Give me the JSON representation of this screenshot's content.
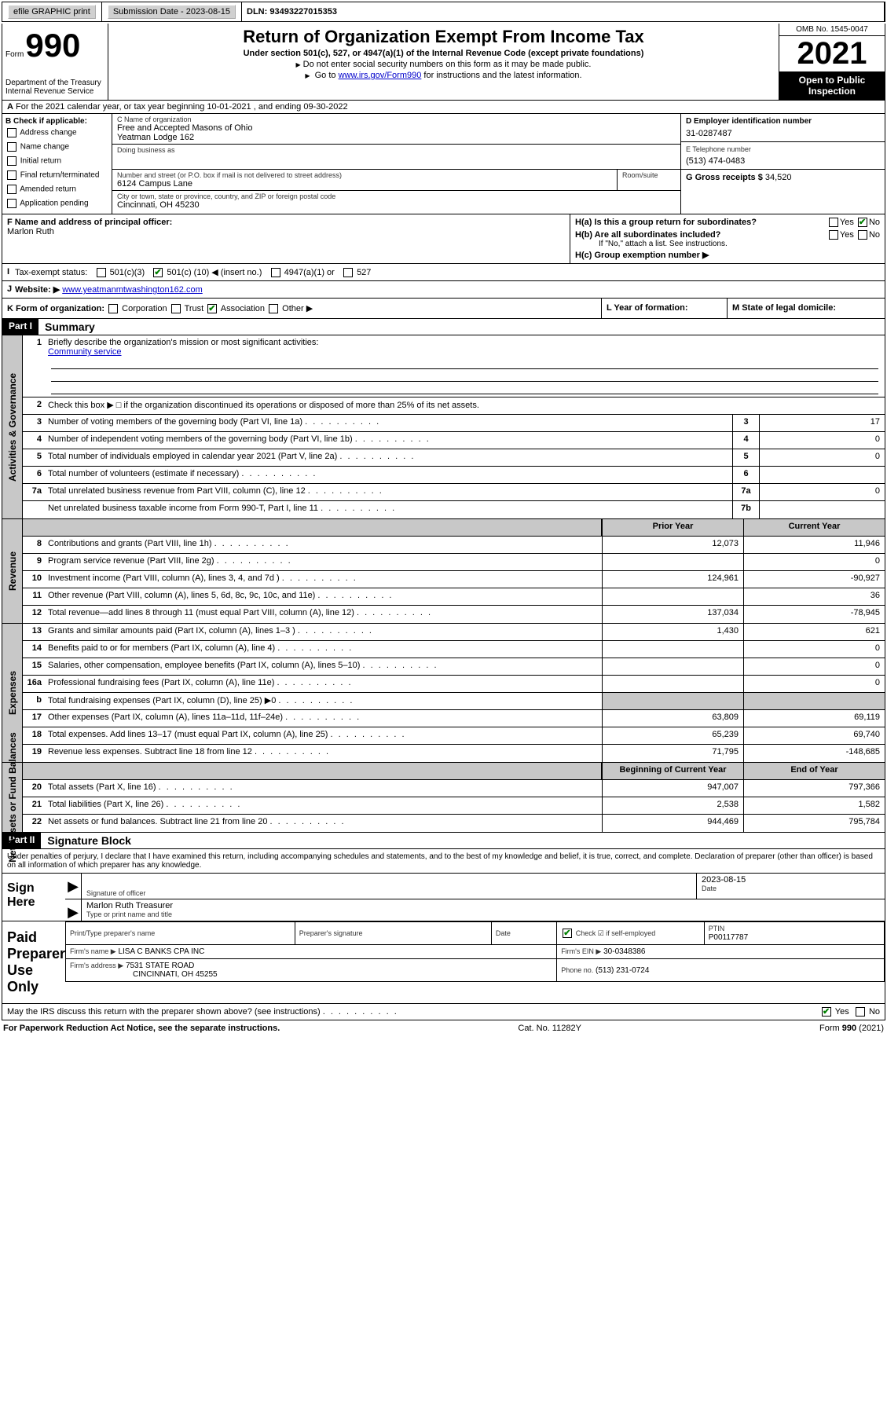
{
  "topbar": {
    "efile_label": "efile GRAPHIC print",
    "submission_label": "Submission Date - 2023-08-15",
    "dln_label": "DLN: 93493227015353"
  },
  "header": {
    "form_word": "Form",
    "form_number": "990",
    "dept": "Department of the Treasury",
    "irs": "Internal Revenue Service",
    "title": "Return of Organization Exempt From Income Tax",
    "sub1": "Under section 501(c), 527, or 4947(a)(1) of the Internal Revenue Code (except private foundations)",
    "sub2": "Do not enter social security numbers on this form as it may be made public.",
    "sub3_pre": "Go to ",
    "sub3_link": "www.irs.gov/Form990",
    "sub3_post": " for instructions and the latest information.",
    "omb": "OMB No. 1545-0047",
    "year": "2021",
    "open_public": "Open to Public Inspection"
  },
  "row_a": {
    "label_a": "A",
    "text": "For the 2021 calendar year, or tax year beginning 10-01-2021    , and ending 09-30-2022"
  },
  "b": {
    "heading": "B Check if applicable:",
    "opts": [
      "Address change",
      "Name change",
      "Initial return",
      "Final return/terminated",
      "Amended return",
      "Application pending"
    ]
  },
  "c": {
    "name_label": "C Name of organization",
    "name_1": "Free and Accepted Masons of Ohio",
    "name_2": "Yeatman Lodge 162",
    "dba_label": "Doing business as",
    "street_label": "Number and street (or P.O. box if mail is not delivered to street address)",
    "street": "6124 Campus Lane",
    "room_label": "Room/suite",
    "city_label": "City or town, state or province, country, and ZIP or foreign postal code",
    "city": "Cincinnati, OH  45230"
  },
  "d": {
    "label": "D Employer identification number",
    "value": "31-0287487"
  },
  "e": {
    "label": "E Telephone number",
    "value": "(513) 474-0483"
  },
  "g": {
    "label": "G Gross receipts $",
    "value": "34,520"
  },
  "f": {
    "label": "F  Name and address of principal officer:",
    "name": "Marlon Ruth"
  },
  "h": {
    "a_label": "H(a)  Is this a group return for subordinates?",
    "yes": "Yes",
    "no": "No",
    "b_label": "H(b)  Are all subordinates included?",
    "b_note": "If \"No,\" attach a list. See instructions.",
    "c_label": "H(c)  Group exemption number ▶"
  },
  "i": {
    "label": "Tax-exempt status:",
    "opt1": "501(c)(3)",
    "opt2_pre": "501(c) (",
    "opt2_num": "10",
    "opt2_post": ") ◀ (insert no.)",
    "opt3": "4947(a)(1) or",
    "opt4": "527"
  },
  "j": {
    "label": "Website: ▶",
    "value": "www.yeatmanmtwashington162.com"
  },
  "k": {
    "label": "K Form of organization:",
    "opts": [
      "Corporation",
      "Trust",
      "Association",
      "Other ▶"
    ],
    "checked_idx": 2
  },
  "l": {
    "label": "L Year of formation:"
  },
  "m": {
    "label": "M State of legal domicile:"
  },
  "parts": {
    "p1": "Part I",
    "p1_title": "Summary",
    "p2": "Part II",
    "p2_title": "Signature Block"
  },
  "summary": {
    "l1_label": "Briefly describe the organization's mission or most significant activities:",
    "l1_value": "Community service",
    "l2": "Check this box ▶ □  if the organization discontinued its operations or disposed of more than 25% of its net assets.",
    "rows_gov": [
      {
        "n": "3",
        "d": "Number of voting members of the governing body (Part VI, line 1a)",
        "box": "3",
        "v": "17"
      },
      {
        "n": "4",
        "d": "Number of independent voting members of the governing body (Part VI, line 1b)",
        "box": "4",
        "v": "0"
      },
      {
        "n": "5",
        "d": "Total number of individuals employed in calendar year 2021 (Part V, line 2a)",
        "box": "5",
        "v": "0"
      },
      {
        "n": "6",
        "d": "Total number of volunteers (estimate if necessary)",
        "box": "6",
        "v": ""
      },
      {
        "n": "7a",
        "d": "Total unrelated business revenue from Part VIII, column (C), line 12",
        "box": "7a",
        "v": "0"
      },
      {
        "n": "",
        "d": "Net unrelated business taxable income from Form 990-T, Part I, line 11",
        "box": "7b",
        "v": ""
      }
    ],
    "col_prior": "Prior Year",
    "col_curr": "Current Year",
    "rows_rev": [
      {
        "n": "8",
        "d": "Contributions and grants (Part VIII, line 1h)",
        "p": "12,073",
        "c": "11,946"
      },
      {
        "n": "9",
        "d": "Program service revenue (Part VIII, line 2g)",
        "p": "",
        "c": "0"
      },
      {
        "n": "10",
        "d": "Investment income (Part VIII, column (A), lines 3, 4, and 7d )",
        "p": "124,961",
        "c": "-90,927"
      },
      {
        "n": "11",
        "d": "Other revenue (Part VIII, column (A), lines 5, 6d, 8c, 9c, 10c, and 11e)",
        "p": "",
        "c": "36"
      },
      {
        "n": "12",
        "d": "Total revenue—add lines 8 through 11 (must equal Part VIII, column (A), line 12)",
        "p": "137,034",
        "c": "-78,945"
      }
    ],
    "rows_exp": [
      {
        "n": "13",
        "d": "Grants and similar amounts paid (Part IX, column (A), lines 1–3 )",
        "p": "1,430",
        "c": "621"
      },
      {
        "n": "14",
        "d": "Benefits paid to or for members (Part IX, column (A), line 4)",
        "p": "",
        "c": "0"
      },
      {
        "n": "15",
        "d": "Salaries, other compensation, employee benefits (Part IX, column (A), lines 5–10)",
        "p": "",
        "c": "0"
      },
      {
        "n": "16a",
        "d": "Professional fundraising fees (Part IX, column (A), line 11e)",
        "p": "",
        "c": "0"
      },
      {
        "n": "b",
        "d": "Total fundraising expenses (Part IX, column (D), line 25) ▶0",
        "p": "SHADE",
        "c": "SHADE"
      },
      {
        "n": "17",
        "d": "Other expenses (Part IX, column (A), lines 11a–11d, 11f–24e)",
        "p": "63,809",
        "c": "69,119"
      },
      {
        "n": "18",
        "d": "Total expenses. Add lines 13–17 (must equal Part IX, column (A), line 25)",
        "p": "65,239",
        "c": "69,740"
      },
      {
        "n": "19",
        "d": "Revenue less expenses. Subtract line 18 from line 12",
        "p": "71,795",
        "c": "-148,685"
      }
    ],
    "col_beg": "Beginning of Current Year",
    "col_end": "End of Year",
    "rows_net": [
      {
        "n": "20",
        "d": "Total assets (Part X, line 16)",
        "p": "947,007",
        "c": "797,366"
      },
      {
        "n": "21",
        "d": "Total liabilities (Part X, line 26)",
        "p": "2,538",
        "c": "1,582"
      },
      {
        "n": "22",
        "d": "Net assets or fund balances. Subtract line 21 from line 20",
        "p": "944,469",
        "c": "795,784"
      }
    ],
    "side_gov": "Activities & Governance",
    "side_rev": "Revenue",
    "side_exp": "Expenses",
    "side_net": "Net Assets or Fund Balances"
  },
  "sig": {
    "intro": "Under penalties of perjury, I declare that I have examined this return, including accompanying schedules and statements, and to the best of my knowledge and belief, it is true, correct, and complete. Declaration of preparer (other than officer) is based on all information of which preparer has any knowledge.",
    "sign_here": "Sign Here",
    "sig_officer_lbl": "Signature of officer",
    "date_lbl": "Date",
    "date_val": "2023-08-15",
    "name_title": "Marlon Ruth  Treasurer",
    "name_title_lbl": "Type or print name and title",
    "paid": "Paid Preparer Use Only",
    "prep_name_lbl": "Print/Type preparer's name",
    "prep_sig_lbl": "Preparer's signature",
    "prep_date_lbl": "Date",
    "self_emp": "Check ☑ if self-employed",
    "ptin_lbl": "PTIN",
    "ptin": "P00117787",
    "firm_name_lbl": "Firm's name    ▶",
    "firm_name": "LISA C BANKS CPA INC",
    "firm_ein_lbl": "Firm's EIN ▶",
    "firm_ein": "30-0348386",
    "firm_addr_lbl": "Firm's address ▶",
    "firm_addr1": "7531 STATE ROAD",
    "firm_addr2": "CINCINNATI, OH  45255",
    "phone_lbl": "Phone no.",
    "phone": "(513) 231-0724",
    "discuss": "May the IRS discuss this return with the preparer shown above? (see instructions)",
    "discuss_yes": "Yes",
    "discuss_no": "No"
  },
  "footer": {
    "left": "For Paperwork Reduction Act Notice, see the separate instructions.",
    "mid": "Cat. No. 11282Y",
    "right": "Form 990 (2021)"
  }
}
